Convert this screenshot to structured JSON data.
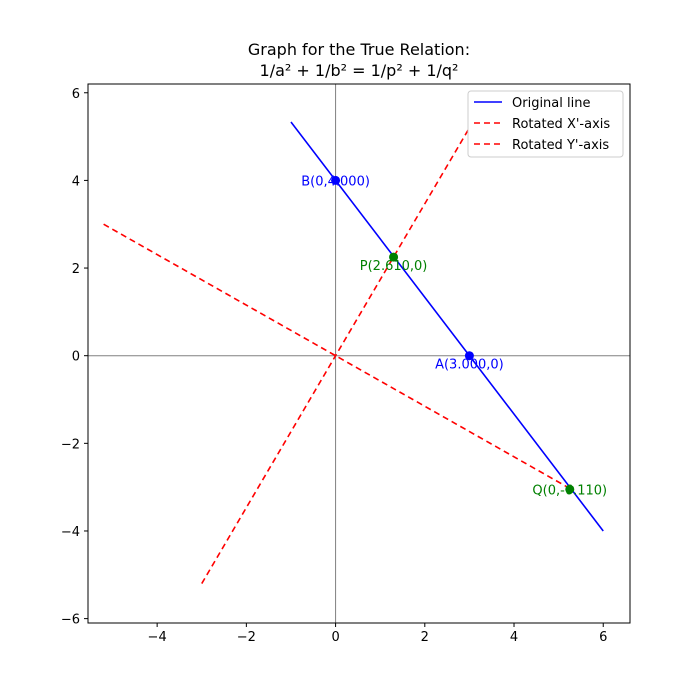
{
  "chart_data": {
    "type": "line",
    "title_lines": [
      "Graph for the True Relation:",
      "1/a² + 1/b² = 1/p² + 1/q²"
    ],
    "xlim": [
      -5.55,
      6.6
    ],
    "ylim": [
      -6.1,
      6.2
    ],
    "xticks": [
      -4,
      -2,
      0,
      2,
      4,
      6
    ],
    "yticks": [
      -6,
      -4,
      -2,
      0,
      2,
      4,
      6
    ],
    "xtick_labels": [
      "−4",
      "−2",
      "0",
      "2",
      "4",
      "6"
    ],
    "ytick_labels": [
      "−6",
      "−4",
      "−2",
      "0",
      "2",
      "4",
      "6"
    ],
    "axes_lines": true,
    "grid": false,
    "legend_position": "top-right",
    "series": [
      {
        "name": "Original line",
        "color": "#0000ff",
        "style": "solid",
        "points": [
          [
            -1,
            5.333
          ],
          [
            6,
            -4
          ]
        ]
      },
      {
        "name": "Rotated X'-axis",
        "color": "#ff0000",
        "style": "dashed",
        "points": [
          [
            -3,
            -5.2
          ],
          [
            3,
            5.2
          ]
        ]
      },
      {
        "name": "Rotated Y'-axis",
        "color": "#ff0000",
        "style": "dashed",
        "points": [
          [
            -5.2,
            3
          ],
          [
            5.2,
            -3
          ]
        ]
      }
    ],
    "points": [
      {
        "x": 3.0,
        "y": 0,
        "label": "A(3.000,0)",
        "color": "#0000ff",
        "anchor": "below"
      },
      {
        "x": 0,
        "y": 4.0,
        "label": "B(0,4.000)",
        "color": "#0000ff",
        "anchor": "on"
      },
      {
        "x": 1.3,
        "y": 2.25,
        "label": "P(2.610,0)",
        "color": "#008000",
        "anchor": "below"
      },
      {
        "x": 5.25,
        "y": -3.05,
        "label": "Q(0,-6.110)",
        "color": "#008000",
        "anchor": "on"
      }
    ]
  }
}
